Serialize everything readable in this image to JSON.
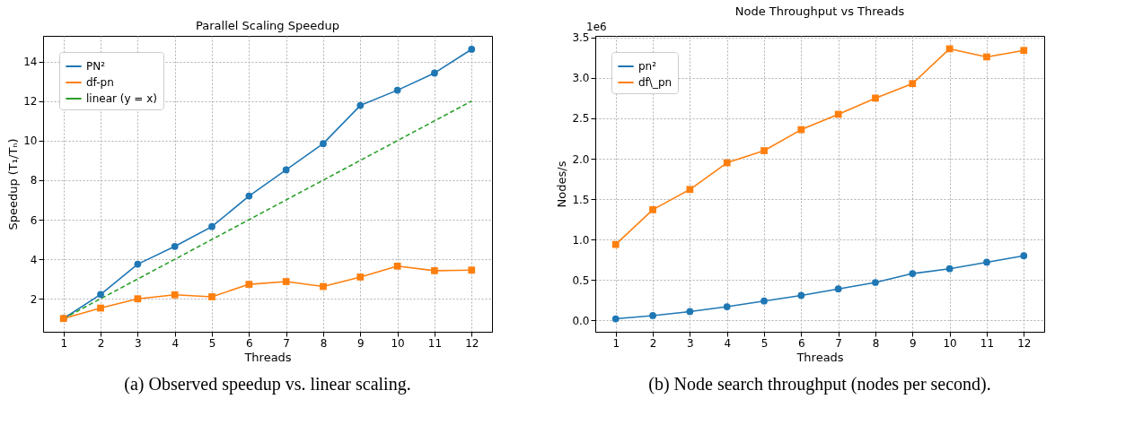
{
  "chart_data": [
    {
      "type": "line",
      "title": "Parallel Scaling Speedup",
      "xlabel": "Threads",
      "ylabel": "Speedup (T₁/Tₙ)",
      "x": [
        1,
        2,
        3,
        4,
        5,
        6,
        7,
        8,
        9,
        10,
        11,
        12
      ],
      "series": [
        {
          "name": "PN²",
          "color": "#1f77b4",
          "marker": "circle",
          "line_style": "solid",
          "values": [
            1.0,
            2.22,
            3.75,
            4.65,
            5.65,
            7.2,
            8.52,
            9.85,
            11.78,
            12.55,
            13.42,
            14.62
          ]
        },
        {
          "name": "df-pn",
          "color": "#ff7f0e",
          "marker": "square",
          "line_style": "solid",
          "values": [
            1.0,
            1.53,
            2.0,
            2.2,
            2.1,
            2.73,
            2.87,
            2.62,
            3.1,
            3.65,
            3.42,
            3.45
          ]
        },
        {
          "name": "linear (y = x)",
          "color": "#2ca02c",
          "marker": "none",
          "line_style": "dashed",
          "values": [
            1,
            2,
            3,
            4,
            5,
            6,
            7,
            8,
            9,
            10,
            11,
            12
          ]
        }
      ],
      "xlim": [
        0.45,
        12.55
      ],
      "xticks": [
        1,
        2,
        3,
        4,
        5,
        6,
        7,
        8,
        9,
        10,
        11,
        12
      ],
      "ylim": [
        0.33,
        15.3
      ],
      "yticks": [
        2,
        4,
        6,
        8,
        10,
        12,
        14
      ],
      "grid": true,
      "legend": "top left",
      "annotations": [
        "(a) Observed speedup vs. linear scaling."
      ]
    },
    {
      "type": "line",
      "title": "Node Throughput vs Threads",
      "xlabel": "Threads",
      "ylabel": "Nodes/s",
      "x": [
        1,
        2,
        3,
        4,
        5,
        6,
        7,
        8,
        9,
        10,
        11,
        12
      ],
      "series": [
        {
          "name": "pn²",
          "color": "#1f77b4",
          "marker": "circle",
          "line_style": "solid",
          "values": [
            0.02,
            0.06,
            0.11,
            0.17,
            0.24,
            0.31,
            0.39,
            0.47,
            0.58,
            0.64,
            0.72,
            0.8
          ]
        },
        {
          "name": "df\\_pn",
          "color": "#ff7f0e",
          "marker": "square",
          "line_style": "solid",
          "values": [
            0.94,
            1.37,
            1.62,
            1.95,
            2.1,
            2.36,
            2.55,
            2.75,
            2.93,
            3.36,
            3.26,
            3.34
          ]
        }
      ],
      "xlim": [
        0.45,
        12.55
      ],
      "xticks": [
        1,
        2,
        3,
        4,
        5,
        6,
        7,
        8,
        9,
        10,
        11,
        12
      ],
      "ylim": [
        -0.14,
        3.52
      ],
      "yticks": [
        {
          "value": 0,
          "label": "0.0"
        },
        0.5,
        {
          "value": 1,
          "label": "1.0"
        },
        1.5,
        {
          "value": 2,
          "label": "2.0"
        },
        2.5,
        {
          "value": 3,
          "label": "3.0"
        },
        3.5
      ],
      "grid": true,
      "legend": "top left",
      "annotations": [
        "1e6",
        "(b) Node search throughput (nodes per second)."
      ]
    }
  ]
}
